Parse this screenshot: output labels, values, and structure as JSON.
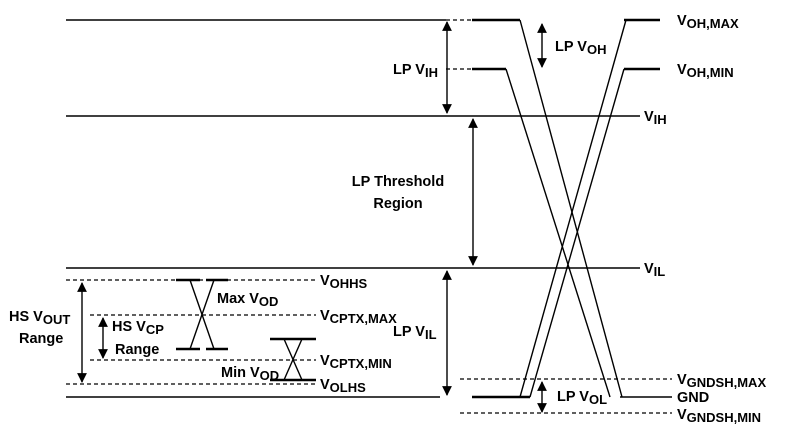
{
  "levels": {
    "voh_max": {
      "main": "V",
      "sub": "OH,MAX"
    },
    "voh_min": {
      "main": "V",
      "sub": "OH,MIN"
    },
    "vih": {
      "main": "V",
      "sub": "IH"
    },
    "vil": {
      "main": "V",
      "sub": "IL"
    },
    "vgndsh_max": {
      "main": "V",
      "sub": "GNDSH,MAX"
    },
    "gnd": {
      "main": "GND"
    },
    "vgndsh_min": {
      "main": "V",
      "sub": "GNDSH,MIN"
    },
    "vohhs": {
      "main": "V",
      "sub": "OHHS"
    },
    "vcptx_max": {
      "main": "V",
      "sub": "CPTX,MAX"
    },
    "vcptx_min": {
      "main": "V",
      "sub": "CPTX,MIN"
    },
    "volhs": {
      "main": "V",
      "sub": "OLHS"
    }
  },
  "annotations": {
    "lp_voh": {
      "prefix": "LP V",
      "sub": "OH"
    },
    "lp_vih": {
      "prefix": "LP V",
      "sub": "IH"
    },
    "lp_threshold_line1": "LP Threshold",
    "lp_threshold_line2": "Region",
    "lp_vil": {
      "prefix": "LP V",
      "sub": "IL"
    },
    "lp_vol": {
      "prefix": "LP V",
      "sub": "OL"
    },
    "max_vod": {
      "prefix": "Max V",
      "sub": "OD"
    },
    "min_vod": {
      "prefix": "Min V",
      "sub": "OD"
    },
    "hs_vout_line1": {
      "prefix": "HS V",
      "sub": "OUT"
    },
    "hs_vout_line2": "Range",
    "hs_vcp_line1": {
      "prefix": "HS V",
      "sub": "CP"
    },
    "hs_vcp_line2": "Range"
  }
}
